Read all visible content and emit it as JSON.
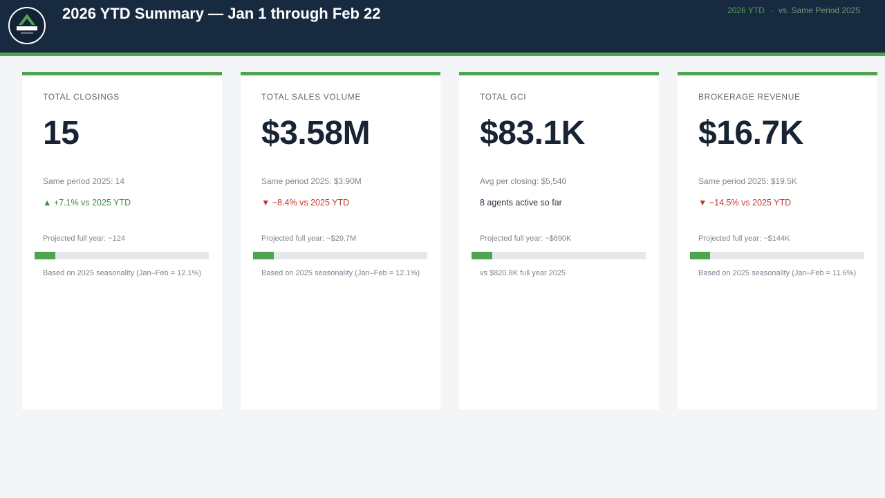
{
  "header": {
    "logo_text": "GMS GROUP",
    "title": "2026 YTD Summary — Jan 1 through Feb 22",
    "right_primary": "2026 YTD",
    "right_sep": "·",
    "right_secondary": "vs. Same Period 2025",
    "colors": {
      "bg": "#182a3f",
      "accent": "#4fa351"
    }
  },
  "cards": [
    {
      "label": "TOTAL CLOSINGS",
      "value": "15",
      "sub": "Same period 2025: 14",
      "delta_icon": "▲",
      "delta_text": "+7.1% vs 2025 YTD",
      "projection": "Projected full year: ~124",
      "progress_fraction": 0.121,
      "note": "Based on 2025 seasonality (Jan–Feb = 12.1%)"
    },
    {
      "label": "TOTAL SALES VOLUME",
      "value": "$3.58M",
      "sub": "Same period 2025: $3.90M",
      "delta_icon": "▼",
      "delta_text": "−8.4% vs 2025 YTD",
      "projection": "Projected full year: ~$29.7M",
      "progress_fraction": 0.121,
      "note": "Based on 2025 seasonality (Jan–Feb = 12.1%)"
    },
    {
      "label": "TOTAL GCI",
      "value": "$83.1K",
      "sub": "Avg per closing: $5,540",
      "delta_icon": "",
      "delta_text": "8 agents active so far",
      "projection": "Projected full year: ~$690K",
      "progress_fraction": 0.121,
      "note": "vs $820.8K full year 2025"
    },
    {
      "label": "BROKERAGE REVENUE",
      "value": "$16.7K",
      "sub": "Same period 2025: $19.5K",
      "delta_icon": "▼",
      "delta_text": "−14.5% vs 2025 YTD",
      "projection": "Projected full year: ~$144K",
      "progress_fraction": 0.116,
      "note": "Based on 2025 seasonality (Jan–Feb = 11.6%)"
    }
  ]
}
